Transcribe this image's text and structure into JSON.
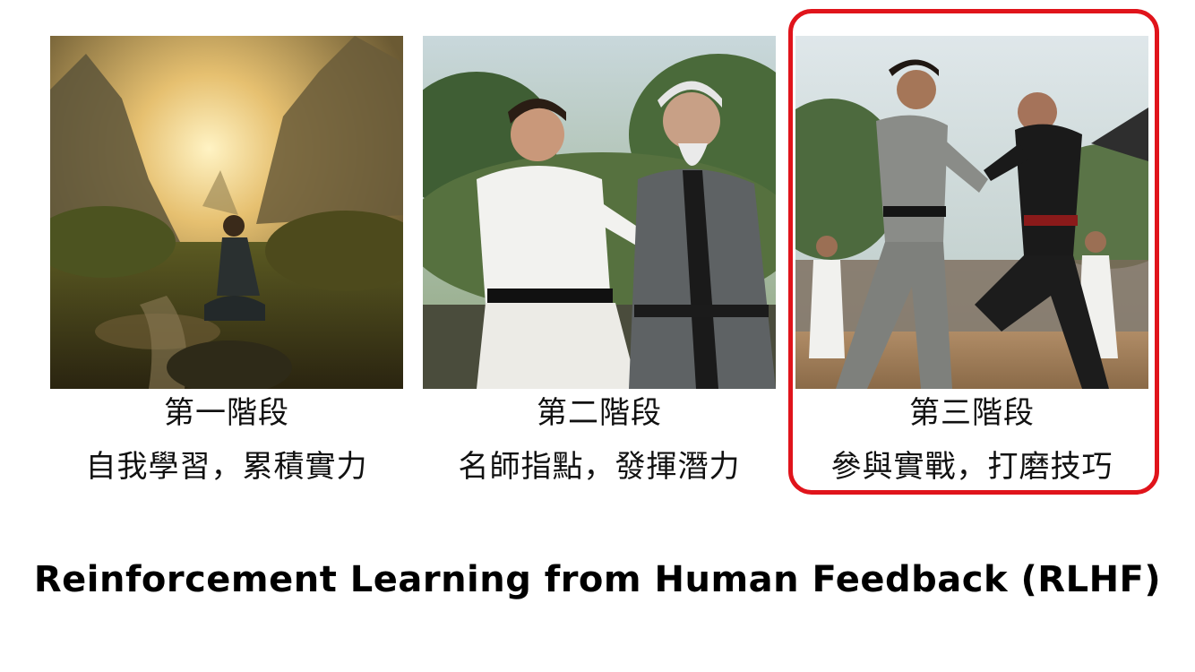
{
  "stages": [
    {
      "label": "第一階段",
      "description": "自我學習，累積實力",
      "image_icon": "meditating-boy-icon",
      "highlighted": false
    },
    {
      "label": "第二階段",
      "description": "名師指點，發揮潛力",
      "image_icon": "master-teaching-icon",
      "highlighted": false
    },
    {
      "label": "第三階段",
      "description": "參與實戰，打磨技巧",
      "image_icon": "sparring-match-icon",
      "highlighted": true
    }
  ],
  "highlight_color": "#e0141b",
  "footer": {
    "title": "Reinforcement Learning from Human Feedback (RLHF)"
  }
}
